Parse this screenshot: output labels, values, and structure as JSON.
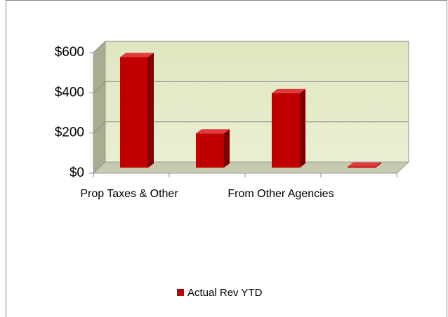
{
  "chart_data": {
    "type": "bar",
    "categories": [
      "Prop Taxes & Other",
      null,
      "From Other Agencies",
      null
    ],
    "series": [
      {
        "name": "Actual Rev YTD",
        "color": "#c00000",
        "values": [
          550,
          170,
          370,
          5
        ]
      }
    ],
    "ylim": [
      0,
      600
    ],
    "yticks": [
      {
        "value": 0,
        "label": "$0"
      },
      {
        "value": 200,
        "label": "$200"
      },
      {
        "value": 400,
        "label": "$400"
      },
      {
        "value": 600,
        "label": "$600"
      }
    ],
    "grid": true,
    "legend": "bottom"
  }
}
